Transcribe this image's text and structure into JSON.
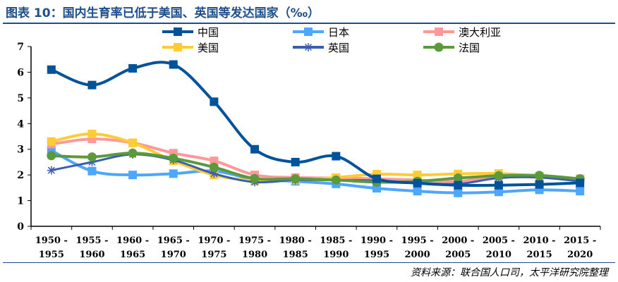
{
  "title": "图表 10：国内生育率已低于美国、英国等发达国家（‰）",
  "source": "资料来源：联合国人口司，太平洋研究院整理",
  "chart_data": {
    "type": "line",
    "categories": [
      [
        "1950 -",
        "1955"
      ],
      [
        "1955 -",
        "1960"
      ],
      [
        "1960 -",
        "1965"
      ],
      [
        "1965 -",
        "1970"
      ],
      [
        "1970 -",
        "1975"
      ],
      [
        "1975 -",
        "1980"
      ],
      [
        "1980 -",
        "1985"
      ],
      [
        "1985 -",
        "1990"
      ],
      [
        "1990 -",
        "1995"
      ],
      [
        "1995 -",
        "2000"
      ],
      [
        "2000 -",
        "2005"
      ],
      [
        "2005 -",
        "2010"
      ],
      [
        "2010 -",
        "2015"
      ],
      [
        "2015 -",
        "2020"
      ]
    ],
    "ylim": [
      0,
      7
    ],
    "yticks": [
      "0",
      "1",
      "2",
      "3",
      "4",
      "5",
      "6",
      "7"
    ],
    "grid": false,
    "legend": "top",
    "series": [
      {
        "name": "中国",
        "color": "#00529b",
        "marker": "square",
        "values": [
          6.1,
          5.5,
          6.15,
          6.3,
          4.85,
          3.0,
          2.5,
          2.73,
          1.85,
          1.68,
          1.6,
          1.6,
          1.63,
          1.69
        ]
      },
      {
        "name": "日本",
        "color": "#4da6ff",
        "marker": "square",
        "values": [
          2.95,
          2.15,
          2.0,
          2.05,
          2.15,
          1.83,
          1.75,
          1.65,
          1.48,
          1.37,
          1.3,
          1.34,
          1.42,
          1.37
        ]
      },
      {
        "name": "澳大利亚",
        "color": "#ff9999",
        "marker": "square",
        "values": [
          3.2,
          3.4,
          3.25,
          2.85,
          2.55,
          2.0,
          1.9,
          1.88,
          1.85,
          1.8,
          1.75,
          1.95,
          1.93,
          1.85
        ]
      },
      {
        "name": "美国",
        "color": "#ffcc33",
        "marker": "square",
        "values": [
          3.3,
          3.6,
          3.25,
          2.55,
          2.0,
          1.77,
          1.8,
          1.9,
          2.03,
          2.0,
          2.04,
          2.06,
          1.95,
          1.82
        ]
      },
      {
        "name": "英国",
        "color": "#3b5fae",
        "marker": "star",
        "values": [
          2.18,
          2.5,
          2.8,
          2.58,
          2.05,
          1.72,
          1.8,
          1.8,
          1.78,
          1.7,
          1.65,
          1.88,
          1.9,
          1.75
        ]
      },
      {
        "name": "法国",
        "color": "#5b9a3a",
        "marker": "circle",
        "values": [
          2.75,
          2.7,
          2.85,
          2.65,
          2.3,
          1.86,
          1.85,
          1.8,
          1.72,
          1.75,
          1.88,
          1.97,
          1.98,
          1.85
        ]
      }
    ]
  }
}
